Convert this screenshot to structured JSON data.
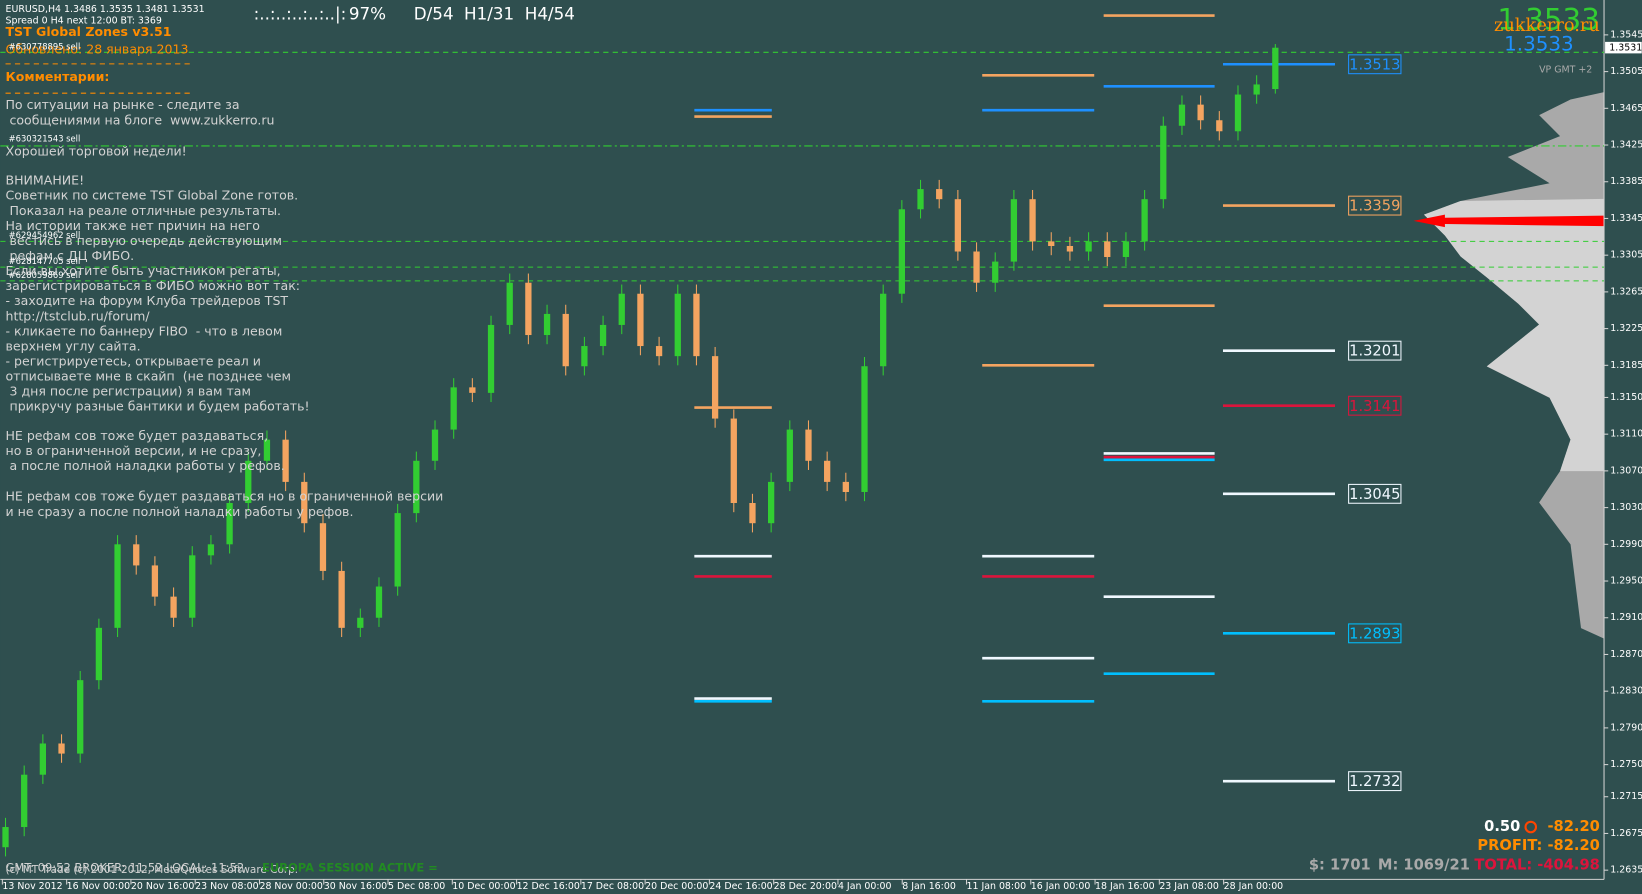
{
  "header": {
    "symbol_line": "EURUSD,H4  1.3486 1.3535 1.3481 1.3531",
    "spread_line": "Spread 0  H4 next 12:00 BT: 3369",
    "indicator_title": "TST Global Zones  v3.51",
    "updated": "Обновлено:    28 января 2013",
    "comments_title": "Комментарии:",
    "comments": [
      [
        "По ситуации на рынке - следите за",
        " сообщениями на блоге  www.zukkerro.ru"
      ],
      [
        "Хорошей торговой недели!"
      ],
      [
        "ВНИМАНИЕ!",
        "Советник по системе TST Global Zone готов.",
        " Показал на реале отличные результаты.",
        "На истории также нет причин на него",
        " вестись в первую очередь действующим",
        " рефам с ДЦ ФИБО.",
        "Если вы хотите быть участником регаты,",
        "зарегистрироваться в ФИБО можно вот так:",
        "- заходите на форум Клуба трейдеров TST",
        "http://tstclub.ru/forum/",
        "- кликаете по баннеру FIBO  - что в левом",
        "верхнем углу сайта.",
        "- регистрируетесь, открываете реал и",
        "отписываете мне в скайп  (не позднее чем",
        " 3 дня после регистрации) я вам там",
        " прикручу разные бантики и будем работать!"
      ],
      [
        "НЕ рефам сов тоже будет раздаваться,",
        "но в ограниченной версии, и не сразу,",
        " а после полной наладки работы у рефов."
      ],
      [
        "НЕ рефам сов тоже будет раздаваться но в ограниченной версии",
        "и не сразу а после полной наладки работы у рефов."
      ]
    ],
    "orders": [
      "#630778895 sell",
      "#630321543 sell",
      "#629454962 sell",
      "#628147705 sell",
      "#628059869 sell"
    ]
  },
  "status": {
    "bars": ":..:..:..:..:..|:",
    "percent": "97%",
    "d": "D/54",
    "h1": "H1/31",
    "h4": "H4/54"
  },
  "quote": {
    "price_big": "1.3533",
    "site": "zukkerro.ru",
    "price_small": "1.3533",
    "vp": "VP GMT +2",
    "current": "1.3531"
  },
  "account": {
    "lot": "0.50",
    "pl": "-82.20",
    "profit": "PROFIT: -82.20",
    "balance": "$: 1701",
    "margin": "M: 1069/21",
    "total": "TOTAL: -404.98"
  },
  "footer": {
    "times": "GMT: 09:52  BROKER: 11:52  LOCAL: 11:52",
    "copyright": "(c) MT Trade (c) 2001-2012, MetaQuotes Software Corp.",
    "session": "EUROPA SESSION ACTIVE ="
  },
  "chart_data": {
    "type": "candlestick",
    "up_color": "#32cd32",
    "down_color": "#f4a460",
    "time_labels": [
      "13 Nov 2012",
      "16 Nov 00:00",
      "20 Nov 16:00",
      "23 Nov 08:00",
      "28 Nov 00:00",
      "30 Nov 16:00",
      "5 Dec 08:00",
      "10 Dec 00:00",
      "12 Dec 16:00",
      "17 Dec 08:00",
      "20 Dec 00:00",
      "24 Dec 16:00",
      "28 Dec 20:00",
      "4 Jan 00:00",
      "8 Jan 16:00",
      "11 Jan 08:00",
      "16 Jan 00:00",
      "18 Jan 16:00",
      "23 Jan 08:00",
      "28 Jan 00:00"
    ],
    "open": [
      1.266,
      1.2682,
      1.2739,
      1.2773,
      1.2762,
      1.2842,
      1.2899,
      1.299,
      1.2967,
      1.2933,
      1.291,
      1.2978,
      1.299,
      1.3035,
      1.3081,
      1.3104,
      1.3058,
      1.3013,
      1.2961,
      1.2899,
      1.291,
      1.2944,
      1.3024,
      1.3081,
      1.3115,
      1.3161,
      1.3155,
      1.3229,
      1.3275,
      1.3218,
      1.3241,
      1.3184,
      1.3206,
      1.3229,
      1.3263,
      1.3206,
      1.3195,
      1.3263,
      1.3195,
      1.3127,
      1.3035,
      1.3013,
      1.3058,
      1.3115,
      1.3081,
      1.3058,
      1.3047,
      1.3184,
      1.3263,
      1.3355,
      1.3377,
      1.3366,
      1.3309,
      1.3275,
      1.3298,
      1.3366,
      1.332,
      1.3315,
      1.3309,
      1.332,
      1.3303,
      1.332,
      1.3366,
      1.3446,
      1.3469,
      1.3452,
      1.344,
      1.348,
      1.3486
    ],
    "high": [
      1.2692,
      1.2749,
      1.2783,
      1.2783,
      1.2852,
      1.2909,
      1.3,
      1.3,
      1.2977,
      1.2943,
      1.2988,
      1.3,
      1.3045,
      1.3091,
      1.3114,
      1.3114,
      1.3068,
      1.3023,
      1.2971,
      1.292,
      1.2954,
      1.3034,
      1.3091,
      1.3125,
      1.3171,
      1.3171,
      1.3239,
      1.3285,
      1.3285,
      1.3251,
      1.3251,
      1.3216,
      1.3239,
      1.3273,
      1.3273,
      1.3216,
      1.3273,
      1.3273,
      1.3205,
      1.3137,
      1.3045,
      1.3068,
      1.3125,
      1.3125,
      1.3091,
      1.3068,
      1.3194,
      1.3273,
      1.3365,
      1.3387,
      1.3387,
      1.3376,
      1.3319,
      1.3308,
      1.3376,
      1.3376,
      1.333,
      1.3325,
      1.333,
      1.333,
      1.333,
      1.3376,
      1.3456,
      1.3479,
      1.3479,
      1.3462,
      1.349,
      1.3501,
      1.3535
    ],
    "low": [
      1.265,
      1.2672,
      1.2729,
      1.2752,
      1.2752,
      1.2832,
      1.2889,
      1.2957,
      1.2923,
      1.29,
      1.29,
      1.2968,
      1.298,
      1.3025,
      1.3071,
      1.3048,
      1.3003,
      1.2951,
      1.2889,
      1.2889,
      1.29,
      1.2934,
      1.3014,
      1.3071,
      1.3105,
      1.3145,
      1.3145,
      1.3219,
      1.3208,
      1.3208,
      1.3174,
      1.3174,
      1.3196,
      1.3219,
      1.3196,
      1.3185,
      1.3185,
      1.3185,
      1.3117,
      1.3025,
      1.3003,
      1.3003,
      1.3048,
      1.3071,
      1.3048,
      1.3037,
      1.3037,
      1.3174,
      1.3253,
      1.3345,
      1.3356,
      1.3299,
      1.3265,
      1.3265,
      1.3288,
      1.331,
      1.3305,
      1.3299,
      1.3299,
      1.3293,
      1.3293,
      1.331,
      1.3356,
      1.3436,
      1.3442,
      1.343,
      1.343,
      1.347,
      1.3481
    ],
    "close": [
      1.2682,
      1.2739,
      1.2773,
      1.2762,
      1.2842,
      1.2899,
      1.299,
      1.2967,
      1.2933,
      1.291,
      1.2978,
      1.299,
      1.3035,
      1.3081,
      1.3104,
      1.3058,
      1.3013,
      1.2961,
      1.2899,
      1.291,
      1.2944,
      1.3024,
      1.3081,
      1.3115,
      1.3161,
      1.3155,
      1.3229,
      1.3275,
      1.3218,
      1.3241,
      1.3184,
      1.3206,
      1.3229,
      1.3263,
      1.3206,
      1.3195,
      1.3263,
      1.3195,
      1.3127,
      1.3035,
      1.3013,
      1.3058,
      1.3115,
      1.3081,
      1.3058,
      1.3047,
      1.3184,
      1.3263,
      1.3355,
      1.3377,
      1.3366,
      1.3309,
      1.3275,
      1.3298,
      1.3366,
      1.332,
      1.3315,
      1.3309,
      1.332,
      1.3303,
      1.332,
      1.3366,
      1.3446,
      1.3469,
      1.3452,
      1.344,
      1.348,
      1.3491,
      1.3531
    ],
    "ylim": [
      1.2625,
      1.3583
    ],
    "yticks": [
      1.3545,
      1.3505,
      1.3465,
      1.3425,
      1.3385,
      1.3345,
      1.3305,
      1.3265,
      1.3225,
      1.3185,
      {
        "value": 1.315,
        "label": "1.3150"
      },
      {
        "value": 1.311,
        "label": "1.3110"
      },
      {
        "value": 1.307,
        "label": "1.3070"
      },
      {
        "value": 1.303,
        "label": "1.3030"
      },
      {
        "value": 1.299,
        "label": "1.2990"
      },
      {
        "value": 1.295,
        "label": "1.2950"
      },
      {
        "value": 1.291,
        "label": "1.2910"
      },
      {
        "value": 1.287,
        "label": "1.2870"
      },
      {
        "value": 1.283,
        "label": "1.2830"
      },
      {
        "value": 1.279,
        "label": "1.2790"
      },
      {
        "value": 1.275,
        "label": "1.2750"
      },
      1.2715,
      1.2675,
      1.2635
    ],
    "dashed_levels": [
      1.3526,
      1.3424,
      1.332,
      1.3292,
      1.3277
    ],
    "dashed_color": "#32cd32",
    "zones": [
      [
        {
          "value": 1.3463,
          "color": "#1e90ff"
        },
        {
          "value": 1.3456,
          "color": "#f4a460"
        },
        {
          "value": 1.3139,
          "color": "#f4a460"
        },
        {
          "value": 1.2977,
          "color": "#f0f8ff"
        },
        {
          "value": 1.2955,
          "color": "#dc143c"
        },
        {
          "value": 1.2822,
          "color": "#f0f8ff"
        },
        {
          "value": 1.2819,
          "color": "#00bfff"
        }
      ],
      [
        {
          "value": 1.3501,
          "color": "#f4a460"
        },
        {
          "value": 1.3463,
          "color": "#1e90ff"
        },
        {
          "value": 1.3185,
          "color": "#f4a460"
        },
        {
          "value": 1.2977,
          "color": "#f0f8ff"
        },
        {
          "value": 1.2955,
          "color": "#dc143c"
        },
        {
          "value": 1.2866,
          "color": "#f0f8ff"
        },
        {
          "value": 1.2819,
          "color": "#00bfff"
        }
      ],
      [
        {
          "value": 1.3566,
          "color": "#f4a460"
        },
        {
          "value": 1.3489,
          "color": "#1e90ff"
        },
        {
          "value": 1.325,
          "color": "#f4a460"
        },
        {
          "value": 1.3089,
          "color": "#f0f8ff"
        },
        {
          "value": 1.3085,
          "color": "#dc143c"
        },
        {
          "value": 1.3082,
          "color": "#00bfff"
        },
        {
          "value": 1.2933,
          "color": "#f0f8ff"
        },
        {
          "value": 1.2849,
          "color": "#00bfff"
        }
      ]
    ],
    "labeled_levels": [
      {
        "value": 1.3513,
        "color": "#1e90ff"
      },
      {
        "value": 1.3359,
        "color": "#f4a460"
      },
      {
        "value": 1.3201,
        "color": "#f0f8ff"
      },
      {
        "value": 1.3141,
        "color": "#dc143c"
      },
      {
        "value": 1.3045,
        "color": "#f0f8ff"
      },
      {
        "value": 1.2893,
        "color": "#00bfff"
      },
      {
        "value": 1.2732,
        "color": "#f0f8ff"
      }
    ]
  }
}
